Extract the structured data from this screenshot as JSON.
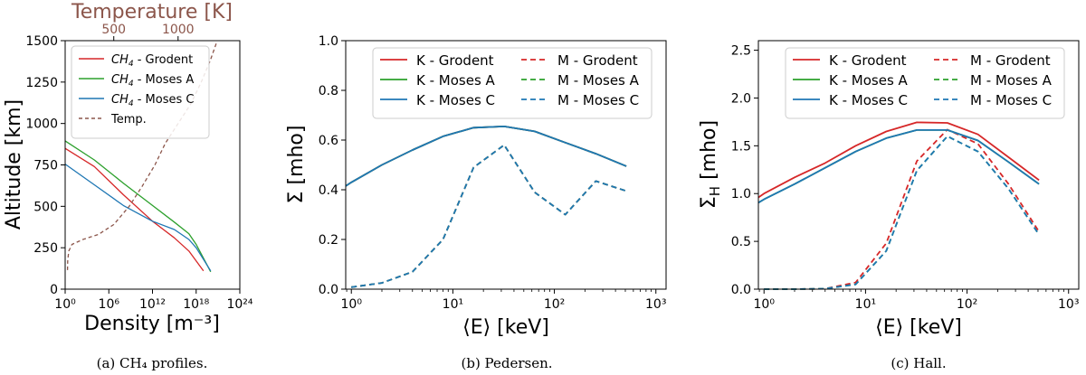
{
  "colors": {
    "red": "#d62728",
    "green": "#2ca02c",
    "blue": "#1f77b4",
    "brown": "#8c564b"
  },
  "chart_data": [
    {
      "id": "a",
      "type": "line",
      "caption": "(a)  CH₄ profiles.",
      "xlabel": "Density [m⁻³]",
      "ylabel": "Altitude [km]",
      "top_xlabel": "Temperature [K]",
      "xscale": "log",
      "xlim": [
        1,
        1e+24
      ],
      "xticks": [
        {
          "v": 1,
          "label": "10⁰"
        },
        {
          "v": 1000000.0,
          "label": "10⁶"
        },
        {
          "v": 1000000000000.0,
          "label": "10¹²"
        },
        {
          "v": 1e+18,
          "label": "10¹⁸"
        },
        {
          "v": 1e+24,
          "label": "10²⁴"
        }
      ],
      "ylim": [
        0,
        1500
      ],
      "yticks": [
        0,
        250,
        500,
        750,
        1000,
        1250,
        1500
      ],
      "top_xlim": [
        122,
        1480
      ],
      "top_xticks": [
        500,
        1000
      ],
      "legend_position": "upper-left",
      "series": [
        {
          "name": "CH₄ - Grodent",
          "legend_prefix": "CH",
          "legend_sub": "4",
          "legend_rest": " - Grodent",
          "color": "red",
          "style": "solid",
          "x": [
            1,
            10000.0,
            100000000.0,
            1000000000000.0,
            1000000000000000.0,
            1e+17,
            1e+19
          ],
          "y": [
            850,
            740,
            570,
            410,
            310,
            230,
            110
          ]
        },
        {
          "name": "CH₄ - Moses A",
          "legend_prefix": "CH",
          "legend_sub": "4",
          "legend_rest": " - Moses A",
          "color": "green",
          "style": "solid",
          "x": [
            1,
            10000.0,
            100000000.0,
            1000000000000.0,
            1000000000000000.0,
            1e+17,
            1e+18,
            1e+20
          ],
          "y": [
            895,
            780,
            640,
            505,
            405,
            335,
            270,
            105
          ]
        },
        {
          "name": "CH₄ - Moses C",
          "legend_prefix": "CH",
          "legend_sub": "4",
          "legend_rest": " - Moses C",
          "color": "blue",
          "style": "solid",
          "x": [
            1,
            10000.0,
            100000000.0,
            1000000000000.0,
            1000000000000000.0,
            1e+17,
            1e+18,
            1e+20
          ],
          "y": [
            755,
            630,
            505,
            410,
            360,
            300,
            250,
            110
          ]
        },
        {
          "name": "Temp.",
          "legend_prefix": "Temp.",
          "legend_sub": "",
          "legend_rest": "",
          "color": "brown",
          "style": "dashed",
          "axis": "top",
          "x": [
            140,
            142,
            150,
            175,
            260,
            380,
            500,
            620,
            720,
            820,
            900,
            1000,
            1100,
            1180,
            1250,
            1300
          ],
          "y": [
            115,
            170,
            230,
            270,
            300,
            330,
            390,
            500,
            620,
            750,
            880,
            1000,
            1120,
            1250,
            1380,
            1490
          ]
        }
      ]
    },
    {
      "id": "b",
      "type": "line",
      "caption": "(b)  Pedersen.",
      "xlabel": "⟨E⟩ [keV]",
      "ylabel": "Σ [mho]",
      "xscale": "log",
      "xlim": [
        0.88,
        1260
      ],
      "xticks": [
        {
          "v": 1,
          "label": "10⁰"
        },
        {
          "v": 10,
          "label": "10¹"
        },
        {
          "v": 100,
          "label": "10²"
        },
        {
          "v": 1000,
          "label": "10³"
        }
      ],
      "ylim": [
        0,
        1.0
      ],
      "yticks": [
        0.0,
        0.2,
        0.4,
        0.6,
        0.8,
        1.0
      ],
      "legend_position": "upper-center",
      "series": [
        {
          "name": "K - Grodent",
          "color": "red",
          "style": "solid",
          "x": [
            0.88,
            1,
            2,
            4,
            8,
            16,
            32,
            64,
            128,
            256,
            512
          ],
          "y": [
            0.415,
            0.43,
            0.5,
            0.56,
            0.615,
            0.65,
            0.655,
            0.635,
            0.59,
            0.545,
            0.495
          ]
        },
        {
          "name": "M - Grodent",
          "color": "red",
          "style": "dashed",
          "x": [
            1,
            2,
            4,
            8,
            16,
            32,
            64,
            128,
            256,
            512
          ],
          "y": [
            0.008,
            0.025,
            0.07,
            0.2,
            0.49,
            0.58,
            0.39,
            0.3,
            0.435,
            0.395
          ]
        },
        {
          "name": "K - Moses A",
          "color": "green",
          "style": "solid",
          "x": [
            0.88,
            1,
            2,
            4,
            8,
            16,
            32,
            64,
            128,
            256,
            512
          ],
          "y": [
            0.415,
            0.43,
            0.5,
            0.56,
            0.615,
            0.65,
            0.655,
            0.635,
            0.59,
            0.545,
            0.495
          ]
        },
        {
          "name": "M - Moses A",
          "color": "green",
          "style": "dashed",
          "x": [
            1,
            2,
            4,
            8,
            16,
            32,
            64,
            128,
            256,
            512
          ],
          "y": [
            0.008,
            0.025,
            0.07,
            0.2,
            0.49,
            0.58,
            0.39,
            0.3,
            0.435,
            0.395
          ]
        },
        {
          "name": "K - Moses C",
          "color": "blue",
          "style": "solid",
          "x": [
            0.88,
            1,
            2,
            4,
            8,
            16,
            32,
            64,
            128,
            256,
            512
          ],
          "y": [
            0.415,
            0.43,
            0.5,
            0.56,
            0.615,
            0.65,
            0.655,
            0.635,
            0.59,
            0.545,
            0.495
          ]
        },
        {
          "name": "M - Moses C",
          "color": "blue",
          "style": "dashed",
          "x": [
            1,
            2,
            4,
            8,
            16,
            32,
            64,
            128,
            256,
            512
          ],
          "y": [
            0.008,
            0.025,
            0.07,
            0.2,
            0.49,
            0.58,
            0.39,
            0.3,
            0.435,
            0.395
          ]
        }
      ]
    },
    {
      "id": "c",
      "type": "line",
      "caption": "(c)  Hall.",
      "xlabel": "⟨E⟩ [keV]",
      "ylabel": "ΣH [mho]",
      "ylabel_main": "Σ",
      "ylabel_sub": "H",
      "ylabel_rest": " [mho]",
      "xscale": "log",
      "xlim": [
        0.88,
        1260
      ],
      "xticks": [
        {
          "v": 1,
          "label": "10⁰"
        },
        {
          "v": 10,
          "label": "10¹"
        },
        {
          "v": 100,
          "label": "10²"
        },
        {
          "v": 1000,
          "label": "10³"
        }
      ],
      "ylim": [
        0,
        2.6
      ],
      "yticks": [
        0.0,
        0.5,
        1.0,
        1.5,
        2.0,
        2.5
      ],
      "legend_position": "upper-center",
      "series": [
        {
          "name": "K - Grodent",
          "color": "red",
          "style": "solid",
          "x": [
            0.88,
            1,
            2,
            4,
            8,
            16,
            32,
            64,
            128,
            256,
            512
          ],
          "y": [
            0.96,
            1.0,
            1.17,
            1.32,
            1.5,
            1.65,
            1.745,
            1.74,
            1.62,
            1.38,
            1.14
          ]
        },
        {
          "name": "M - Grodent",
          "color": "red",
          "style": "dashed",
          "x": [
            1,
            2,
            4,
            8,
            16,
            32,
            64,
            128,
            256,
            512
          ],
          "y": [
            0.0,
            0.0,
            0.005,
            0.07,
            0.48,
            1.34,
            1.67,
            1.52,
            1.1,
            0.6
          ]
        },
        {
          "name": "K - Moses A",
          "color": "green",
          "style": "solid",
          "x": [
            0.88,
            1,
            2,
            4,
            8,
            16,
            32,
            64,
            128,
            256,
            512
          ],
          "y": [
            0.905,
            0.94,
            1.1,
            1.27,
            1.44,
            1.58,
            1.665,
            1.665,
            1.555,
            1.33,
            1.1
          ]
        },
        {
          "name": "M - Moses A",
          "color": "green",
          "style": "dashed",
          "x": [
            1,
            2,
            4,
            8,
            16,
            32,
            64,
            128,
            256,
            512
          ],
          "y": [
            0.0,
            0.0,
            0.005,
            0.05,
            0.4,
            1.24,
            1.6,
            1.44,
            1.05,
            0.57
          ]
        },
        {
          "name": "K - Moses C",
          "color": "blue",
          "style": "solid",
          "x": [
            0.88,
            1,
            2,
            4,
            8,
            16,
            32,
            64,
            128,
            256,
            512
          ],
          "y": [
            0.905,
            0.94,
            1.1,
            1.27,
            1.44,
            1.58,
            1.665,
            1.665,
            1.555,
            1.33,
            1.1
          ]
        },
        {
          "name": "M - Moses C",
          "color": "blue",
          "style": "dashed",
          "x": [
            1,
            2,
            4,
            8,
            16,
            32,
            64,
            128,
            256,
            512
          ],
          "y": [
            0.0,
            0.0,
            0.005,
            0.05,
            0.4,
            1.24,
            1.6,
            1.44,
            1.05,
            0.57
          ]
        }
      ]
    }
  ]
}
